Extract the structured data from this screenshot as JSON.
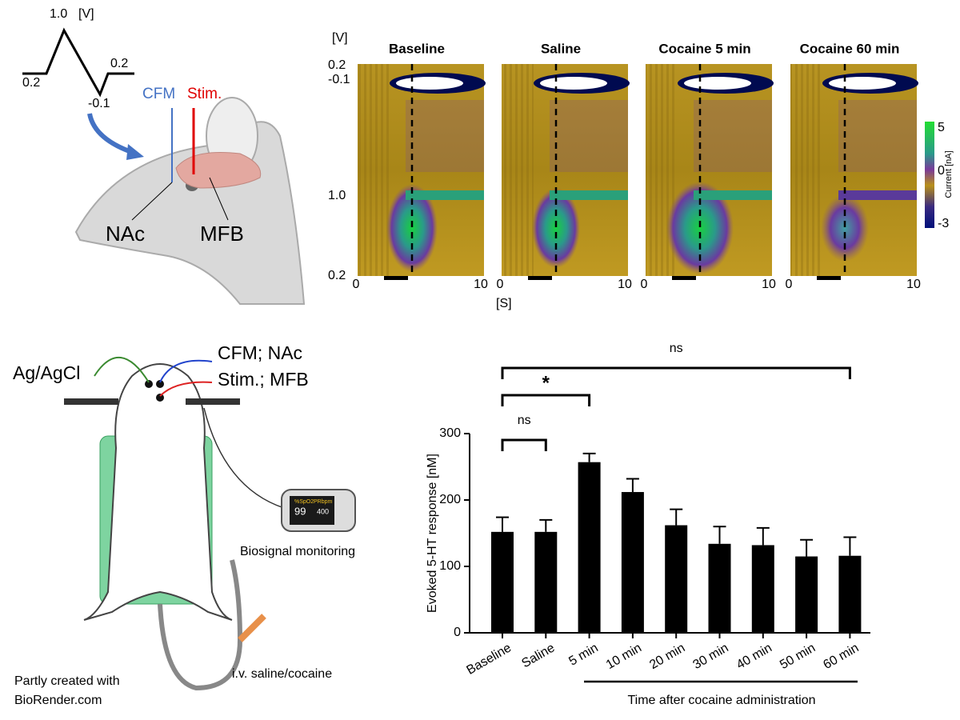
{
  "waveform": {
    "peak": "1.0",
    "unit": "[V]",
    "start": "0.2",
    "end": "0.2",
    "min": "-0.1"
  },
  "head_labels": {
    "cfm": "CFM",
    "stim": "Stim.",
    "nac": "NAc",
    "mfb": "MFB"
  },
  "cv_plots": {
    "panels": [
      "Baseline",
      "Saline",
      "Cocaine 5 min",
      "Cocaine 60 min"
    ],
    "y_unit": "[V]",
    "y_labels": [
      "0.2",
      "-0.1",
      "1.0",
      "0.2"
    ],
    "x_unit": "[S]",
    "x_labels": [
      "0",
      "10"
    ],
    "colorbar": {
      "labels": [
        "5",
        "0",
        "-3"
      ],
      "title": "Current [nA]"
    }
  },
  "setup_labels": {
    "reference": "Ag/AgCl",
    "cfm": "CFM; NAc",
    "stim": "Stim.; MFB",
    "monitor": "Biosignal monitoring",
    "iv": "i.v. saline/cocaine",
    "credit": [
      "Partly created with",
      "BioRender.com"
    ],
    "oximeter": {
      "spo2": "%SpO2",
      "pr": "PRbpm",
      "spo2_value": "99",
      "pr_value": "400"
    }
  },
  "chart_data": {
    "type": "bar",
    "categories": [
      "Baseline",
      "Saline",
      "5 min",
      "10 min",
      "20 min",
      "30 min",
      "40 min",
      "50 min",
      "60 min"
    ],
    "values": [
      152,
      152,
      257,
      212,
      162,
      134,
      132,
      115,
      116
    ],
    "errors": [
      22,
      18,
      13,
      20,
      24,
      26,
      26,
      25,
      28
    ],
    "color": "#000000",
    "ylabel": "Evoked 5-HT response [nM]",
    "xlabel": "Time after cocaine administration",
    "ylim": [
      0,
      300
    ],
    "yticks": [
      0,
      100,
      200,
      300
    ],
    "annotations": [
      {
        "label": "ns",
        "between": [
          "Baseline",
          "Saline"
        ]
      },
      {
        "label": "*",
        "between": [
          "Baseline",
          "5 min"
        ]
      },
      {
        "label": "ns",
        "between": [
          "Baseline",
          "60 min"
        ]
      }
    ]
  }
}
